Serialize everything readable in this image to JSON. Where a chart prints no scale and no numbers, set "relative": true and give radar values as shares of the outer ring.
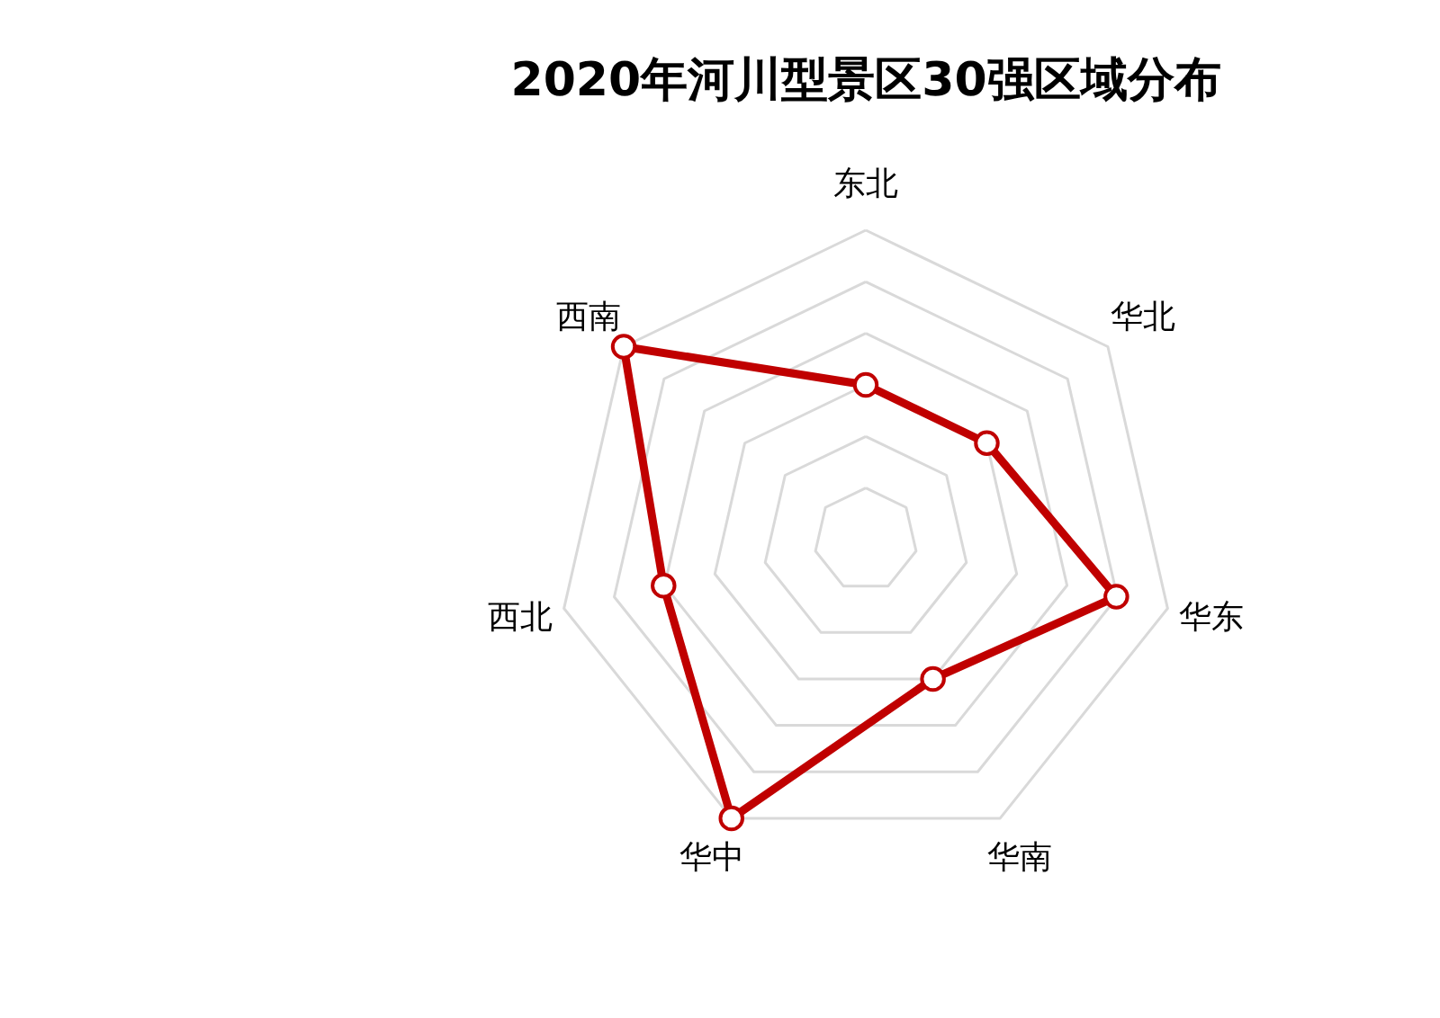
{
  "chart_data": {
    "type": "radar",
    "title": "2020年河川型景区30强区域分布",
    "categories": [
      "东北",
      "华北",
      "华东",
      "华南",
      "华中",
      "西北",
      "西南"
    ],
    "relative": true,
    "series": [
      {
        "color": "#c00000",
        "values": [
          0.5,
          0.5,
          0.83,
          0.5,
          1,
          0.67,
          1
        ]
      }
    ],
    "grid": true,
    "marker": "circle",
    "line_style": "solid"
  }
}
